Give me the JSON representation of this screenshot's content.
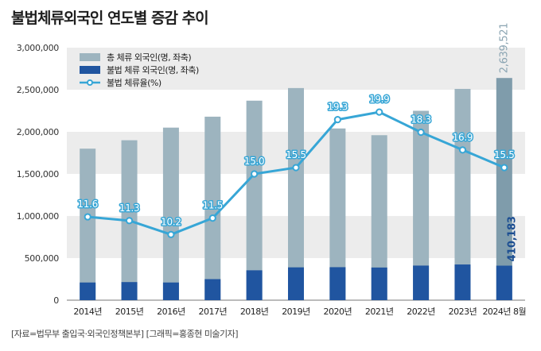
{
  "title": "불법체류외국인 연도별 증감 추이",
  "source": "[자료=법무부 출입국·외국인정책본부] [그래픽=홍종현 미술기자]",
  "colors": {
    "total_bar": "#9db4bf",
    "total_bar_last": "#7f9cab",
    "illegal_bar": "#2055a0",
    "line": "#37a6d6",
    "band": "#ececec",
    "last_total_label": "#8aa4b2",
    "last_illegal_label": "#1c4e92"
  },
  "chart_data": {
    "type": "bar",
    "categories": [
      "2014년",
      "2015년",
      "2016년",
      "2017년",
      "2018년",
      "2019년",
      "2020년",
      "2021년",
      "2022년",
      "2023년",
      "2024년 8월"
    ],
    "series": [
      {
        "name": "총 체류 외국인(명, 좌축)",
        "kind": "bar",
        "axis": "left",
        "values": [
          1800000,
          1900000,
          2050000,
          2180000,
          2370000,
          2520000,
          2040000,
          1960000,
          2250000,
          2510000,
          2639521
        ]
      },
      {
        "name": "불법 체류 외국인(명, 좌축)",
        "kind": "bar",
        "axis": "left",
        "values": [
          210000,
          215000,
          210000,
          250000,
          355000,
          390000,
          392000,
          388000,
          411000,
          424000,
          410183
        ]
      },
      {
        "name": "불법 체류율(%)",
        "kind": "line",
        "axis": "hidden",
        "values": [
          11.6,
          11.3,
          10.2,
          11.5,
          15.0,
          15.5,
          19.3,
          19.9,
          18.3,
          16.9,
          15.5
        ],
        "labels": [
          "11.6",
          "11.3",
          "10.2",
          "11.5",
          "15.0",
          "15.5",
          "19.3",
          "19.9",
          "18.3",
          "16.9",
          "15.5"
        ]
      }
    ],
    "y_ticks": [
      {
        "value": 0,
        "label": "0"
      },
      {
        "value": 500000,
        "label": "500,000"
      },
      {
        "value": 1000000,
        "label": "1,000,000"
      },
      {
        "value": 1500000,
        "label": "1,500,000"
      },
      {
        "value": 2000000,
        "label": "2,000,000"
      },
      {
        "value": 2500000,
        "label": "2,500,000"
      },
      {
        "value": 3000000,
        "label": "3,000,000"
      }
    ],
    "ylim": [
      0,
      3000000
    ],
    "line_range": [
      5,
      25
    ],
    "annotations": {
      "last_total_label": "2,639,521",
      "last_illegal_label": "410,183"
    },
    "grid": "alternating horizontal bands",
    "legend_position": "top-left"
  }
}
